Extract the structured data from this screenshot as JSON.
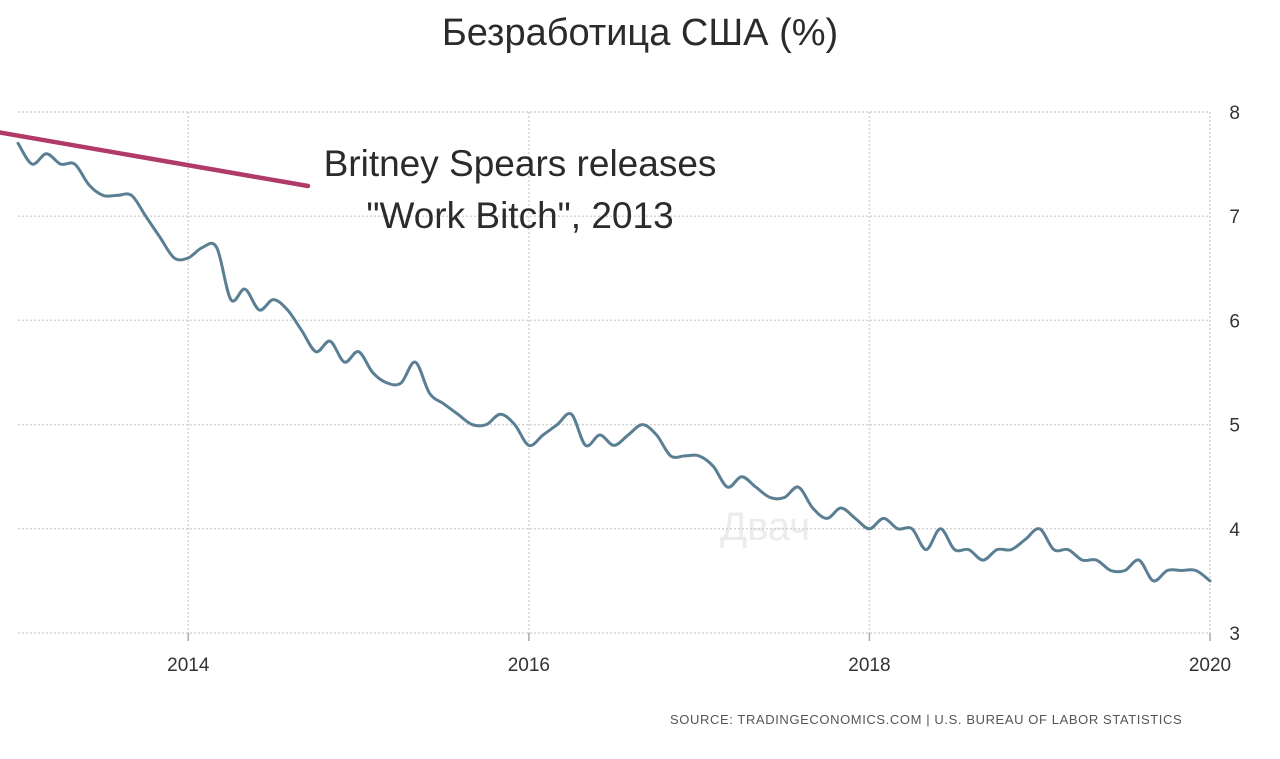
{
  "chart_data": {
    "type": "line",
    "title": "Безработица США (%)",
    "xlabel": "",
    "ylabel": "",
    "x_ticks": [
      "2014",
      "2016",
      "2018",
      "2020"
    ],
    "y_ticks": [
      "3",
      "4",
      "5",
      "6",
      "7",
      "8"
    ],
    "xlim": [
      2013.0,
      2020.0
    ],
    "ylim": [
      3,
      8
    ],
    "grid": true,
    "y_axis_side": "right",
    "line_color": "#5a7f92",
    "series": [
      {
        "x": [
          2013.0,
          2013.083,
          2013.167,
          2013.25,
          2013.333,
          2013.417,
          2013.5,
          2013.583,
          2013.667,
          2013.75,
          2013.833,
          2013.917,
          2014.0,
          2014.083,
          2014.167,
          2014.25,
          2014.333,
          2014.417,
          2014.5,
          2014.583,
          2014.667,
          2014.75,
          2014.833,
          2014.917,
          2015.0,
          2015.083,
          2015.167,
          2015.25,
          2015.333,
          2015.417,
          2015.5,
          2015.583,
          2015.667,
          2015.75,
          2015.833,
          2015.917,
          2016.0,
          2016.083,
          2016.167,
          2016.25,
          2016.333,
          2016.417,
          2016.5,
          2016.583,
          2016.667,
          2016.75,
          2016.833,
          2016.917,
          2017.0,
          2017.083,
          2017.167,
          2017.25,
          2017.333,
          2017.417,
          2017.5,
          2017.583,
          2017.667,
          2017.75,
          2017.833,
          2017.917,
          2018.0,
          2018.083,
          2018.167,
          2018.25,
          2018.333,
          2018.417,
          2018.5,
          2018.583,
          2018.667,
          2018.75,
          2018.833,
          2018.917,
          2019.0,
          2019.083,
          2019.167,
          2019.25,
          2019.333,
          2019.417,
          2019.5,
          2019.583,
          2019.667,
          2019.75,
          2019.833,
          2019.917,
          2020.0
        ],
        "values": [
          7.7,
          7.5,
          7.6,
          7.5,
          7.5,
          7.3,
          7.2,
          7.2,
          7.2,
          7.0,
          6.8,
          6.6,
          6.6,
          6.7,
          6.7,
          6.2,
          6.3,
          6.1,
          6.2,
          6.1,
          5.9,
          5.7,
          5.8,
          5.6,
          5.7,
          5.5,
          5.4,
          5.4,
          5.6,
          5.3,
          5.2,
          5.1,
          5.0,
          5.0,
          5.1,
          5.0,
          4.8,
          4.9,
          5.0,
          5.1,
          4.8,
          4.9,
          4.8,
          4.9,
          5.0,
          4.9,
          4.7,
          4.7,
          4.7,
          4.6,
          4.4,
          4.5,
          4.4,
          4.3,
          4.3,
          4.4,
          4.2,
          4.1,
          4.2,
          4.1,
          4.0,
          4.1,
          4.0,
          4.0,
          3.8,
          4.0,
          3.8,
          3.8,
          3.7,
          3.8,
          3.8,
          3.9,
          4.0,
          3.8,
          3.8,
          3.7,
          3.7,
          3.6,
          3.6,
          3.7,
          3.5,
          3.6,
          3.6,
          3.6,
          3.5
        ]
      }
    ],
    "annotation": {
      "line1": "Britney Spears releases",
      "line2": "\"Work Bitch\", 2013",
      "points_to_x": 2013.25,
      "points_to_y": 7.7
    },
    "source": "SOURCE: TRADINGECONOMICS.COM  |  U.S. BUREAU OF LABOR STATISTICS",
    "watermark": "Двач",
    "annotation_color": "#b03a68",
    "grid_color": "#d4d4d4"
  }
}
